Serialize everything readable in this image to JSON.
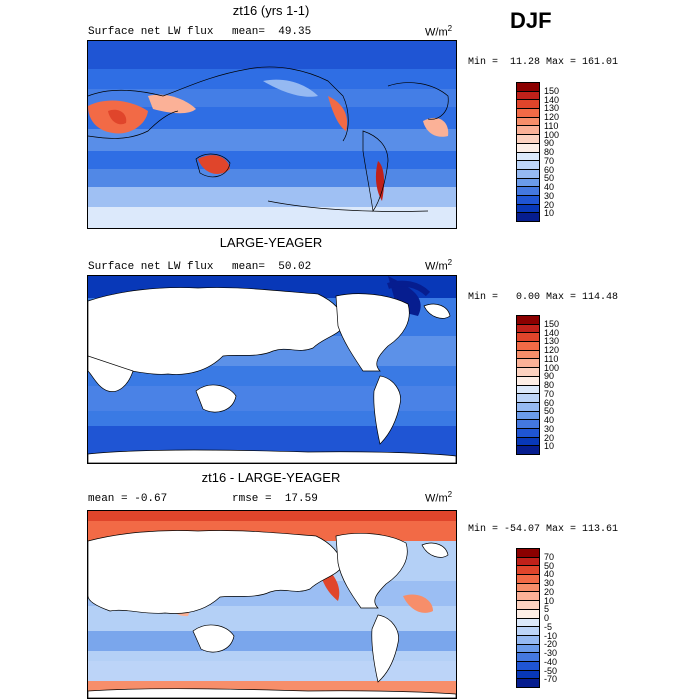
{
  "season": "DJF",
  "panels": [
    {
      "title": "zt16 (yrs 1-1)",
      "left_label": "Surface net LW flux",
      "stat_label": "mean=",
      "stat_value": "49.35",
      "units": "W/m",
      "units_exp": "2",
      "minmax": "Min =  11.28 Max = 161.01",
      "ocean_color": "#2e6ee6",
      "land_color": "#5f9ae8",
      "colorbar": {
        "labels": [
          "150",
          "140",
          "130",
          "120",
          "110",
          "100",
          "90",
          "80",
          "70",
          "60",
          "50",
          "40",
          "30",
          "20",
          "10"
        ],
        "colors": [
          "#8b0000",
          "#c0211a",
          "#e0452b",
          "#f26a46",
          "#f78e6a",
          "#fbb197",
          "#fdd2c0",
          "#fdeee6",
          "#dce9fb",
          "#bcd4f8",
          "#95b9f2",
          "#6b9bea",
          "#4478e0",
          "#1f55d4",
          "#0838b8",
          "#061d8f"
        ]
      }
    },
    {
      "title": "LARGE-YEAGER",
      "left_label": "Surface net LW flux",
      "stat_label": "mean=",
      "stat_value": "50.02",
      "units": "W/m",
      "units_exp": "2",
      "minmax": "Min =   0.00 Max = 114.48",
      "ocean_color": "#3a7ae4",
      "land_color": "#ffffff",
      "colorbar": {
        "labels": [
          "150",
          "140",
          "130",
          "120",
          "110",
          "100",
          "90",
          "80",
          "70",
          "60",
          "50",
          "40",
          "30",
          "20",
          "10"
        ],
        "colors": [
          "#8b0000",
          "#c0211a",
          "#e0452b",
          "#f26a46",
          "#f78e6a",
          "#fbb197",
          "#fdd2c0",
          "#fdeee6",
          "#dce9fb",
          "#bcd4f8",
          "#95b9f2",
          "#6b9bea",
          "#4478e0",
          "#1f55d4",
          "#0838b8",
          "#061d8f"
        ]
      }
    },
    {
      "title": "zt16 - LARGE-YEAGER",
      "left_label": "mean =",
      "stat_label": "rmse =",
      "left_value": "-0.67",
      "stat_value": "17.59",
      "units": "W/m",
      "units_exp": "2",
      "minmax": "Min = -54.07 Max = 113.61",
      "ocean_color": "#b4d0f6",
      "land_color": "#ffffff",
      "colorbar": {
        "labels": [
          "70",
          "50",
          "40",
          "30",
          "20",
          "10",
          "5",
          "0",
          "-5",
          "-10",
          "-20",
          "-30",
          "-40",
          "-50",
          "-70"
        ],
        "colors": [
          "#8b0000",
          "#c0211a",
          "#e0452b",
          "#f26a46",
          "#f78e6a",
          "#fbb197",
          "#fdd2c0",
          "#fdeee6",
          "#dce9fb",
          "#bcd4f8",
          "#95b9f2",
          "#6b9bea",
          "#4478e0",
          "#1f55d4",
          "#0838b8",
          "#061d8f"
        ]
      }
    }
  ]
}
